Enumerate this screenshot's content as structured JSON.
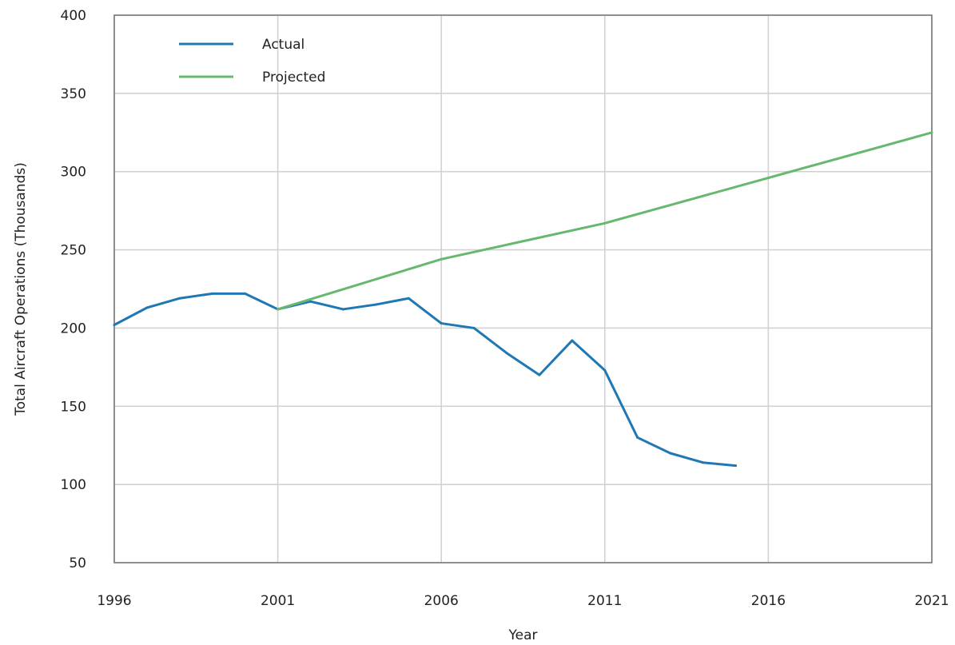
{
  "chart_data": {
    "type": "line",
    "title": "",
    "xlabel": "Year",
    "ylabel": "Total Aircraft Operations (Thousands)",
    "xlim": [
      1996,
      2021
    ],
    "ylim": [
      50,
      400
    ],
    "x_ticks": [
      1996,
      2001,
      2006,
      2011,
      2016,
      2021
    ],
    "y_ticks": [
      50,
      100,
      150,
      200,
      250,
      300,
      350,
      400
    ],
    "grid": true,
    "legend_position": "top-left",
    "series": [
      {
        "name": "Actual",
        "color": "#1f78b4",
        "x": [
          1996,
          1997,
          1998,
          1999,
          2000,
          2001,
          2002,
          2003,
          2004,
          2005,
          2006,
          2007,
          2008,
          2009,
          2010,
          2011,
          2012,
          2013,
          2014,
          2015
        ],
        "y": [
          202,
          213,
          219,
          222,
          222,
          212,
          217,
          212,
          215,
          219,
          203,
          200,
          184,
          170,
          192,
          173,
          130,
          120,
          114,
          112
        ]
      },
      {
        "name": "Projected",
        "color": "#66b86e",
        "x": [
          2001,
          2006,
          2011,
          2016,
          2021
        ],
        "y": [
          212,
          244,
          267,
          296,
          325
        ]
      }
    ]
  }
}
